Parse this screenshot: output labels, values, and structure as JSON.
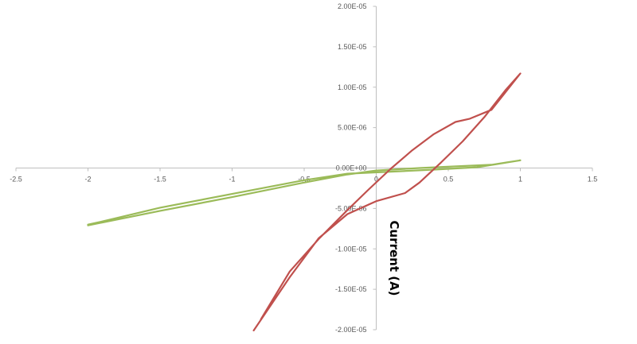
{
  "chart_data": {
    "type": "line",
    "title": "",
    "xlabel": "",
    "ylabel": "Current (A)",
    "xlim": [
      -2.5,
      1.5
    ],
    "ylim": [
      -2e-05,
      2e-05
    ],
    "x_ticks": [
      {
        "value": -2.5,
        "label": "-2.5"
      },
      {
        "value": -2,
        "label": "-2"
      },
      {
        "value": -1.5,
        "label": "-1.5"
      },
      {
        "value": -1,
        "label": "-1"
      },
      {
        "value": -0.5,
        "label": "-0.5"
      },
      {
        "value": 0,
        "label": "0"
      },
      {
        "value": 0.5,
        "label": "0.5"
      },
      {
        "value": 1,
        "label": "1"
      },
      {
        "value": 1.5,
        "label": "1.5"
      }
    ],
    "y_ticks": [
      {
        "value": 2e-05,
        "label": "2.00E-05"
      },
      {
        "value": 1.5e-05,
        "label": "1.50E-05"
      },
      {
        "value": 1e-05,
        "label": "1.00E-05"
      },
      {
        "value": 5e-06,
        "label": "5.00E-06"
      },
      {
        "value": 0,
        "label": "0.00E+00"
      },
      {
        "value": -5e-06,
        "label": "-5.00E-06"
      },
      {
        "value": -1e-05,
        "label": "-1.00E-05"
      },
      {
        "value": -1.5e-05,
        "label": "-1.50E-05"
      },
      {
        "value": -2e-05,
        "label": "-2.00E-05"
      }
    ],
    "grid": false,
    "legend": "none",
    "series": [
      {
        "color": "#9bbb59",
        "points": [
          [
            -2,
            -7.1e-06
          ],
          [
            -1.5,
            -5.3e-06
          ],
          [
            -1,
            -3.6e-06
          ],
          [
            -0.5,
            -1.8e-06
          ],
          [
            -0.2,
            -8e-07
          ],
          [
            0,
            -3e-07
          ],
          [
            0.3,
            0
          ],
          [
            0.6,
            2.5e-07
          ],
          [
            0.8,
            4e-07
          ],
          [
            1,
            9.5e-07
          ],
          [
            0.7,
            1e-07
          ],
          [
            0.4,
            -2e-07
          ],
          [
            0.1,
            -4.5e-07
          ],
          [
            -0.2,
            -7e-07
          ],
          [
            -0.5,
            -1.5e-06
          ],
          [
            -1,
            -3.2e-06
          ],
          [
            -1.5,
            -4.9e-06
          ],
          [
            -1.9,
            -6.6e-06
          ],
          [
            -2,
            -7e-06
          ]
        ]
      },
      {
        "color": "#c0504d",
        "points": [
          [
            -0.85,
            -2.01e-05
          ],
          [
            -0.6,
            -1.35e-05
          ],
          [
            -0.4,
            -8.7e-06
          ],
          [
            -0.2,
            -5.7e-06
          ],
          [
            0,
            -4.1e-06
          ],
          [
            0.2,
            -3.1e-06
          ],
          [
            0.3,
            -1.8e-06
          ],
          [
            0.45,
            7e-07
          ],
          [
            0.6,
            3.3e-06
          ],
          [
            0.75,
            6.3e-06
          ],
          [
            0.9,
            9.7e-06
          ],
          [
            1,
            1.17e-05
          ],
          [
            0.8,
            7.2e-06
          ],
          [
            0.65,
            6.1e-06
          ],
          [
            0.55,
            5.7e-06
          ],
          [
            0.4,
            4.2e-06
          ],
          [
            0.25,
            2.2e-06
          ],
          [
            0.1,
            -1e-07
          ],
          [
            -0.05,
            -2.6e-06
          ],
          [
            -0.2,
            -5.2e-06
          ],
          [
            -0.4,
            -8.8e-06
          ],
          [
            -0.6,
            -1.28e-05
          ],
          [
            -0.8,
            -1.87e-05
          ]
        ]
      }
    ]
  }
}
